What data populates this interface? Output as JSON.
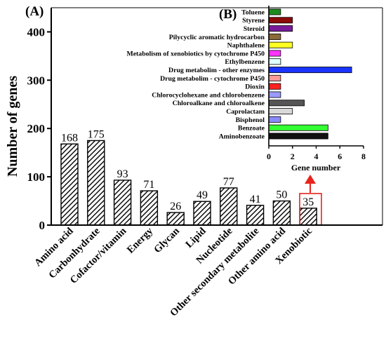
{
  "chart_data": [
    {
      "panel": "(A)",
      "type": "bar",
      "ylabel": "Number of  genes",
      "ylim": [
        0,
        450
      ],
      "yticks": [
        0,
        100,
        200,
        300,
        400
      ],
      "categories": [
        "Amino acid",
        "Carbonhydrate",
        "Cofactor/vitamin",
        "Energy",
        "Glycan",
        "Lipid",
        "Nucleotide",
        "Other secondary metabolite",
        "Other amino acid",
        "Xenobiotic"
      ],
      "values": [
        168,
        175,
        93,
        71,
        26,
        49,
        77,
        41,
        50,
        35
      ],
      "data_labels": [
        "168",
        "175",
        "93",
        "71",
        "26",
        "49",
        "77",
        "41",
        "50",
        "35"
      ],
      "highlight": {
        "category": "Xenobiotic",
        "color": "#e8241c"
      },
      "bar_fill": "diagonal-hatch"
    },
    {
      "panel": "(B)",
      "type": "bar",
      "orientation": "horizontal",
      "xlabel": "Gene number",
      "xlim": [
        0,
        8
      ],
      "xticks": [
        0,
        2,
        4,
        6,
        8
      ],
      "categories": [
        "Toluene",
        "Styrene",
        "Steroid",
        "Pilycyclic aromatic hydrocarbon",
        "Naphthalene",
        "Metabolism of xenobiotics by cytochrome P450",
        "Ethylbenzene",
        "Drug metabolim - other enzymes",
        "Drug metabolim - cytochrome P450",
        "Dioxin",
        "Chlorocyclohexane and chlorobenzene",
        "Chloroalkane and chloroalkene",
        "Caprolactam",
        "Bisphenol",
        "Benzoate",
        "Aminobenzoate"
      ],
      "values": [
        1,
        2,
        2,
        1,
        2,
        1,
        1,
        7,
        1,
        1,
        1,
        3,
        2,
        1,
        5,
        5
      ],
      "colors": [
        "#1e8a1e",
        "#8b0a0a",
        "#7a1a9a",
        "#8b6a3a",
        "#ffff22",
        "#ff33ff",
        "#dfffff",
        "#1a33ff",
        "#ff9a9a",
        "#ff2222",
        "#9a9aff",
        "#555555",
        "#d9d9d9",
        "#8a8aff",
        "#33ff33",
        "#111111"
      ]
    }
  ]
}
